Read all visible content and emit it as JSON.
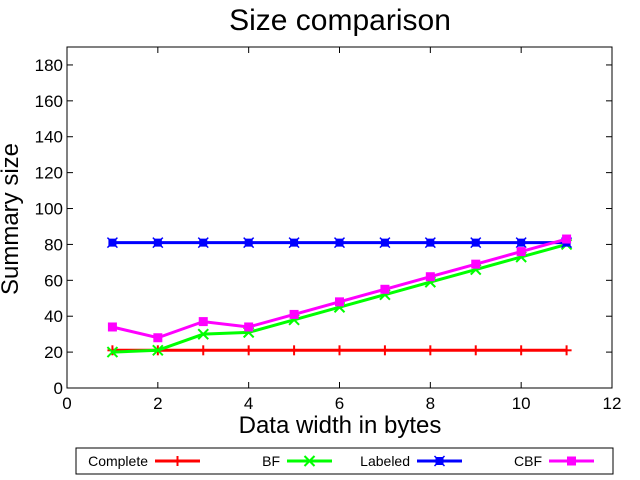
{
  "chart_data": {
    "type": "line",
    "title": "Size comparison",
    "xlabel": "Data width in bytes",
    "ylabel": "Summary size",
    "xlim": [
      0,
      12
    ],
    "ylim": [
      0,
      190
    ],
    "x_ticks": [
      0,
      2,
      4,
      6,
      8,
      10,
      12
    ],
    "y_ticks": [
      0,
      20,
      40,
      60,
      80,
      100,
      120,
      140,
      160,
      180
    ],
    "grid": false,
    "legend_placement": "bottom",
    "x": [
      1,
      2,
      3,
      4,
      5,
      6,
      7,
      8,
      9,
      10,
      11
    ],
    "series": [
      {
        "name": "Complete",
        "color": "#ff0000",
        "marker": "plus",
        "values": [
          21,
          21,
          21,
          21,
          21,
          21,
          21,
          21,
          21,
          21,
          21
        ]
      },
      {
        "name": "BF",
        "color": "#00ff00",
        "marker": "cross",
        "values": [
          20,
          21,
          30,
          31,
          38,
          45,
          52,
          59,
          66,
          73,
          80
        ]
      },
      {
        "name": "Labeled",
        "color": "#0000ff",
        "marker": "square-star",
        "values": [
          81,
          81,
          81,
          81,
          81,
          81,
          81,
          81,
          81,
          81,
          81
        ]
      },
      {
        "name": "CBF",
        "color": "#ff00ff",
        "marker": "filled-square",
        "values": [
          34,
          28,
          37,
          34,
          41,
          48,
          55,
          62,
          69,
          76,
          83
        ]
      }
    ]
  }
}
